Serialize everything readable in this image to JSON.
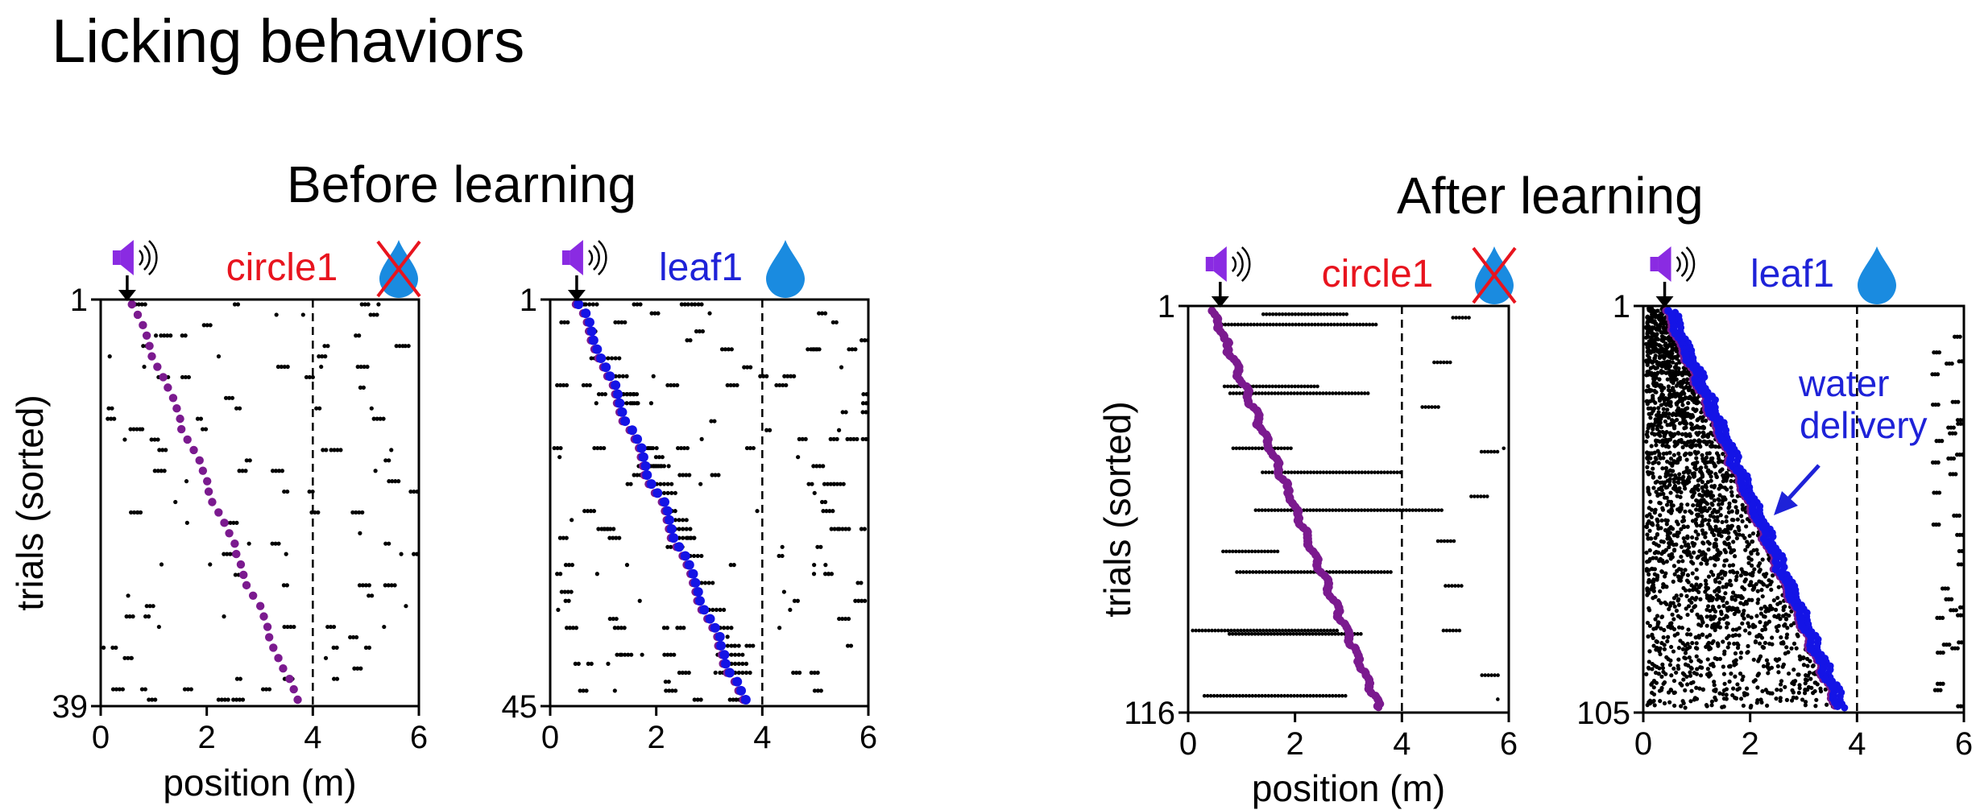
{
  "page": {
    "title": "Licking behaviors",
    "before_title": "Before learning",
    "after_title": "After learning"
  },
  "colors": {
    "reward_onset": "#7b1a8f",
    "water_delivery": "#1414e6",
    "circle_label": "#e8141e",
    "leaf_label": "#1e22d8",
    "speaker": "#8a2be2",
    "drop": "#1a8be0",
    "cross": "#e8141e",
    "licks": "#000000"
  },
  "icons": [
    "speaker-icon",
    "water-drop-icon",
    "cross-icon",
    "down-arrow-icon"
  ],
  "chart_data": [
    {
      "type": "scatter",
      "panel": "before-circle1",
      "stimulus_label": "circle1",
      "reward": "none",
      "xlabel": "position (m)",
      "ylabel": "trials (sorted)",
      "xlim": [
        0,
        6
      ],
      "xticks": [
        0,
        2,
        4,
        6
      ],
      "y_ticks": [
        "1",
        "39"
      ],
      "n_trials": 39,
      "cue_position": 0.5,
      "reward_zone_line": 4,
      "onset_start": 0.6,
      "onset_end": 3.7,
      "water_delivery": false
    },
    {
      "type": "scatter",
      "panel": "before-leaf1",
      "stimulus_label": "leaf1",
      "reward": "water",
      "xlabel": "",
      "ylabel": "",
      "xlim": [
        0,
        6
      ],
      "xticks": [
        0,
        2,
        4,
        6
      ],
      "y_ticks": [
        "1",
        "45"
      ],
      "n_trials": 45,
      "cue_position": 0.5,
      "reward_zone_line": 4,
      "onset_start": 0.5,
      "onset_end": 3.6,
      "water_delivery": true
    },
    {
      "type": "scatter",
      "panel": "after-circle1",
      "stimulus_label": "circle1",
      "reward": "none",
      "xlabel": "position (m)",
      "ylabel": "trials (sorted)",
      "xlim": [
        0,
        6
      ],
      "xticks": [
        0,
        2,
        4,
        6
      ],
      "y_ticks": [
        "1",
        "116"
      ],
      "n_trials": 116,
      "cue_position": 0.6,
      "reward_zone_line": 4,
      "onset_start": 0.45,
      "onset_end": 3.55,
      "water_delivery": false
    },
    {
      "type": "scatter",
      "panel": "after-leaf1",
      "stimulus_label": "leaf1",
      "reward": "water",
      "xlabel": "",
      "ylabel": "",
      "xlim": [
        0,
        6
      ],
      "xticks": [
        0,
        2,
        4,
        6
      ],
      "y_ticks": [
        "1",
        "105"
      ],
      "n_trials": 105,
      "cue_position": 0.4,
      "reward_zone_line": 4,
      "onset_start": 0.4,
      "onset_end": 3.6,
      "water_delivery": true,
      "annotation": "water\ndelivery"
    }
  ]
}
